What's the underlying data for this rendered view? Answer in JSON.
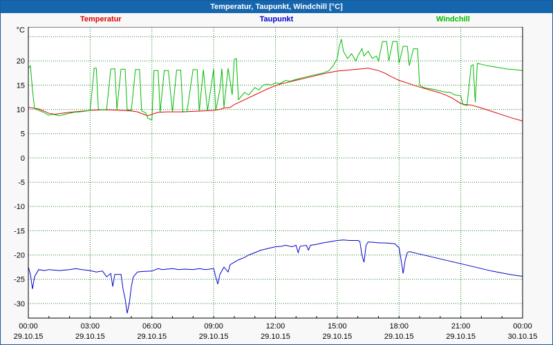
{
  "window": {
    "title": "Temperatur, Taupunkt, Windchill [°C]",
    "titlebar_color": "#1666ae"
  },
  "legend": [
    {
      "label": "Temperatur",
      "color": "#dd0000"
    },
    {
      "label": "Taupunkt",
      "color": "#0000cc"
    },
    {
      "label": "Windchill",
      "color": "#00bb00"
    }
  ],
  "chart_data": {
    "type": "line",
    "title": "Temperatur, Taupunkt, Windchill [°C]",
    "ylabel": "°C",
    "ylim": [
      -33,
      27
    ],
    "xlim": [
      0,
      24
    ],
    "grid": true,
    "grid_color": "#1d7a1d",
    "plot_bg": "#ffffff",
    "y_gridlines": [
      25,
      20,
      15,
      10,
      5,
      0,
      -5,
      -10,
      -15,
      -20,
      -25,
      -30
    ],
    "y_tick_labels": [
      20,
      15,
      10,
      5,
      0,
      -5,
      -10,
      -15,
      -20,
      -25,
      -30
    ],
    "x_ticks": [
      {
        "hour": 0,
        "time": "00:00",
        "date": "29.10.15"
      },
      {
        "hour": 3,
        "time": "03:00",
        "date": "29.10.15"
      },
      {
        "hour": 6,
        "time": "06:00",
        "date": "29.10.15"
      },
      {
        "hour": 9,
        "time": "09:00",
        "date": "29.10.15"
      },
      {
        "hour": 12,
        "time": "12:00",
        "date": "29.10.15"
      },
      {
        "hour": 15,
        "time": "15:00",
        "date": "29.10.15"
      },
      {
        "hour": 18,
        "time": "18:00",
        "date": "29.10.15"
      },
      {
        "hour": 21,
        "time": "21:00",
        "date": "29.10.15"
      },
      {
        "hour": 24,
        "time": "00:00",
        "date": "30.10.15"
      }
    ],
    "series": [
      {
        "name": "Temperatur",
        "color": "#dd0000",
        "points": [
          [
            0,
            10.4
          ],
          [
            0.2,
            10.3
          ],
          [
            0.5,
            10.1
          ],
          [
            0.8,
            9.6
          ],
          [
            1.0,
            9.2
          ],
          [
            1.3,
            9.0
          ],
          [
            1.6,
            9.2
          ],
          [
            2.0,
            9.4
          ],
          [
            2.5,
            9.6
          ],
          [
            3.0,
            9.8
          ],
          [
            3.5,
            9.9
          ],
          [
            4.0,
            9.9
          ],
          [
            4.5,
            9.8
          ],
          [
            5.0,
            9.7
          ],
          [
            5.3,
            9.5
          ],
          [
            5.6,
            9.0
          ],
          [
            5.8,
            8.7
          ],
          [
            6.0,
            9.0
          ],
          [
            6.3,
            9.4
          ],
          [
            6.7,
            9.5
          ],
          [
            7.0,
            9.5
          ],
          [
            7.5,
            9.5
          ],
          [
            8.0,
            9.6
          ],
          [
            8.5,
            9.7
          ],
          [
            9.0,
            9.8
          ],
          [
            9.3,
            10.0
          ],
          [
            9.5,
            10.3
          ],
          [
            9.8,
            10.4
          ],
          [
            10.0,
            11.0
          ],
          [
            10.3,
            11.6
          ],
          [
            10.6,
            12.2
          ],
          [
            11.0,
            13.0
          ],
          [
            11.3,
            13.6
          ],
          [
            11.6,
            14.2
          ],
          [
            12.0,
            14.9
          ],
          [
            12.3,
            15.3
          ],
          [
            12.6,
            15.6
          ],
          [
            13.0,
            16.0
          ],
          [
            13.5,
            16.5
          ],
          [
            14.0,
            17.0
          ],
          [
            14.5,
            17.5
          ],
          [
            15.0,
            17.9
          ],
          [
            15.5,
            18.1
          ],
          [
            16.0,
            18.3
          ],
          [
            16.5,
            18.5
          ],
          [
            17.0,
            18.0
          ],
          [
            17.3,
            17.5
          ],
          [
            17.6,
            16.8
          ],
          [
            18.0,
            16.0
          ],
          [
            18.5,
            15.3
          ],
          [
            19.0,
            14.6
          ],
          [
            19.5,
            14.0
          ],
          [
            20.0,
            13.4
          ],
          [
            20.3,
            12.9
          ],
          [
            20.6,
            12.3
          ],
          [
            21.0,
            11.2
          ],
          [
            21.2,
            11.0
          ],
          [
            21.5,
            10.9
          ],
          [
            22.0,
            10.3
          ],
          [
            22.5,
            9.6
          ],
          [
            23.0,
            8.9
          ],
          [
            23.5,
            8.2
          ],
          [
            24.0,
            7.6
          ]
        ]
      },
      {
        "name": "Taupunkt",
        "color": "#0000cc",
        "points": [
          [
            0,
            -22.5
          ],
          [
            0.1,
            -24.0
          ],
          [
            0.2,
            -27.0
          ],
          [
            0.3,
            -24.5
          ],
          [
            0.5,
            -23.0
          ],
          [
            0.8,
            -23.2
          ],
          [
            1.0,
            -23.0
          ],
          [
            1.5,
            -23.2
          ],
          [
            2.0,
            -23.0
          ],
          [
            2.3,
            -22.8
          ],
          [
            2.6,
            -23.0
          ],
          [
            3.0,
            -23.2
          ],
          [
            3.3,
            -23.5
          ],
          [
            3.6,
            -23.3
          ],
          [
            3.8,
            -24.5
          ],
          [
            4.0,
            -23.8
          ],
          [
            4.1,
            -26.5
          ],
          [
            4.2,
            -24.0
          ],
          [
            4.5,
            -24.0
          ],
          [
            4.6,
            -27.0
          ],
          [
            4.7,
            -29.0
          ],
          [
            4.8,
            -32.0
          ],
          [
            4.9,
            -30.0
          ],
          [
            5.0,
            -26.5
          ],
          [
            5.1,
            -24.5
          ],
          [
            5.3,
            -23.5
          ],
          [
            5.5,
            -23.4
          ],
          [
            6.0,
            -23.3
          ],
          [
            6.3,
            -22.8
          ],
          [
            6.5,
            -23.0
          ],
          [
            7.0,
            -22.8
          ],
          [
            7.3,
            -23.0
          ],
          [
            7.6,
            -22.9
          ],
          [
            8.0,
            -23.0
          ],
          [
            8.3,
            -22.8
          ],
          [
            8.6,
            -23.0
          ],
          [
            9.0,
            -22.8
          ],
          [
            9.1,
            -24.5
          ],
          [
            9.2,
            -26.0
          ],
          [
            9.3,
            -24.0
          ],
          [
            9.5,
            -22.5
          ],
          [
            9.7,
            -23.5
          ],
          [
            9.8,
            -22.0
          ],
          [
            10.0,
            -21.5
          ],
          [
            10.2,
            -21.0
          ],
          [
            10.5,
            -20.5
          ],
          [
            10.7,
            -20.0
          ],
          [
            11.0,
            -19.5
          ],
          [
            11.3,
            -19.0
          ],
          [
            11.6,
            -18.7
          ],
          [
            12.0,
            -18.3
          ],
          [
            12.3,
            -18.2
          ],
          [
            12.5,
            -18.0
          ],
          [
            12.8,
            -18.3
          ],
          [
            13.0,
            -18.0
          ],
          [
            13.1,
            -19.5
          ],
          [
            13.2,
            -18.2
          ],
          [
            13.5,
            -18.0
          ],
          [
            13.6,
            -19.0
          ],
          [
            13.7,
            -18.0
          ],
          [
            14.0,
            -17.8
          ],
          [
            14.3,
            -17.5
          ],
          [
            14.6,
            -17.3
          ],
          [
            15.0,
            -17.0
          ],
          [
            15.3,
            -16.9
          ],
          [
            15.6,
            -17.0
          ],
          [
            16.0,
            -17.0
          ],
          [
            16.1,
            -17.2
          ],
          [
            16.2,
            -20.0
          ],
          [
            16.3,
            -21.5
          ],
          [
            16.4,
            -18.0
          ],
          [
            16.5,
            -17.3
          ],
          [
            16.8,
            -17.4
          ],
          [
            17.0,
            -17.5
          ],
          [
            17.3,
            -17.5
          ],
          [
            17.6,
            -17.6
          ],
          [
            17.8,
            -17.7
          ],
          [
            18.0,
            -18.5
          ],
          [
            18.1,
            -21.0
          ],
          [
            18.2,
            -23.8
          ],
          [
            18.3,
            -21.0
          ],
          [
            18.4,
            -19.5
          ],
          [
            18.5,
            -19.3
          ],
          [
            18.8,
            -19.6
          ],
          [
            19.0,
            -19.8
          ],
          [
            19.5,
            -20.3
          ],
          [
            20.0,
            -20.8
          ],
          [
            20.5,
            -21.3
          ],
          [
            21.0,
            -21.8
          ],
          [
            21.5,
            -22.3
          ],
          [
            22.0,
            -22.8
          ],
          [
            22.5,
            -23.3
          ],
          [
            23.0,
            -23.7
          ],
          [
            23.5,
            -24.1
          ],
          [
            24.0,
            -24.4
          ]
        ]
      },
      {
        "name": "Windchill",
        "color": "#00bb00",
        "points": [
          [
            0,
            18.5
          ],
          [
            0.1,
            19.0
          ],
          [
            0.2,
            14.0
          ],
          [
            0.3,
            10.2
          ],
          [
            0.5,
            9.8
          ],
          [
            0.7,
            9.5
          ],
          [
            0.9,
            9.0
          ],
          [
            1.0,
            8.8
          ],
          [
            1.2,
            9.0
          ],
          [
            1.5,
            8.7
          ],
          [
            1.8,
            9.0
          ],
          [
            2.0,
            9.2
          ],
          [
            2.2,
            9.4
          ],
          [
            2.5,
            9.5
          ],
          [
            2.7,
            9.6
          ],
          [
            3.0,
            9.8
          ],
          [
            3.2,
            18.5
          ],
          [
            3.3,
            18.5
          ],
          [
            3.4,
            10.0
          ],
          [
            3.6,
            9.9
          ],
          [
            3.8,
            10.0
          ],
          [
            4.0,
            18.3
          ],
          [
            4.2,
            18.4
          ],
          [
            4.3,
            10.0
          ],
          [
            4.5,
            18.3
          ],
          [
            4.7,
            18.3
          ],
          [
            4.8,
            9.9
          ],
          [
            5.0,
            9.8
          ],
          [
            5.2,
            18.2
          ],
          [
            5.4,
            18.2
          ],
          [
            5.5,
            9.7
          ],
          [
            5.7,
            9.3
          ],
          [
            5.8,
            8.2
          ],
          [
            6.0,
            7.8
          ],
          [
            6.1,
            18.0
          ],
          [
            6.3,
            18.0
          ],
          [
            6.4,
            9.4
          ],
          [
            6.6,
            18.0
          ],
          [
            6.8,
            18.0
          ],
          [
            7.0,
            9.5
          ],
          [
            7.2,
            18.1
          ],
          [
            7.4,
            18.1
          ],
          [
            7.5,
            9.6
          ],
          [
            7.7,
            9.5
          ],
          [
            8.0,
            18.2
          ],
          [
            8.2,
            18.2
          ],
          [
            8.3,
            9.7
          ],
          [
            8.5,
            18.2
          ],
          [
            8.7,
            9.7
          ],
          [
            9.0,
            18.3
          ],
          [
            9.1,
            9.8
          ],
          [
            9.3,
            14.0
          ],
          [
            9.4,
            18.4
          ],
          [
            9.5,
            10.4
          ],
          [
            9.7,
            18.5
          ],
          [
            9.9,
            13.0
          ],
          [
            10.0,
            20.3
          ],
          [
            10.1,
            20.5
          ],
          [
            10.2,
            12.0
          ],
          [
            10.3,
            12.5
          ],
          [
            10.5,
            13.5
          ],
          [
            10.7,
            13.0
          ],
          [
            10.9,
            14.0
          ],
          [
            11.0,
            14.5
          ],
          [
            11.2,
            14.0
          ],
          [
            11.4,
            15.0
          ],
          [
            11.6,
            15.2
          ],
          [
            11.8,
            15.0
          ],
          [
            12.0,
            15.5
          ],
          [
            12.2,
            15.3
          ],
          [
            12.5,
            16.0
          ],
          [
            12.7,
            15.8
          ],
          [
            13.0,
            16.2
          ],
          [
            13.3,
            16.5
          ],
          [
            13.6,
            16.8
          ],
          [
            14.0,
            17.2
          ],
          [
            14.3,
            17.5
          ],
          [
            14.6,
            18.0
          ],
          [
            14.8,
            19.0
          ],
          [
            15.0,
            20.5
          ],
          [
            15.1,
            23.0
          ],
          [
            15.2,
            24.5
          ],
          [
            15.3,
            22.0
          ],
          [
            15.5,
            20.5
          ],
          [
            15.7,
            21.5
          ],
          [
            15.9,
            20.0
          ],
          [
            16.0,
            21.0
          ],
          [
            16.2,
            22.5
          ],
          [
            16.3,
            21.0
          ],
          [
            16.5,
            22.0
          ],
          [
            16.7,
            20.5
          ],
          [
            16.9,
            21.0
          ],
          [
            17.0,
            20.0
          ],
          [
            17.2,
            24.0
          ],
          [
            17.4,
            24.0
          ],
          [
            17.5,
            20.0
          ],
          [
            17.7,
            24.0
          ],
          [
            17.9,
            24.0
          ],
          [
            18.0,
            19.5
          ],
          [
            18.2,
            23.0
          ],
          [
            18.4,
            23.0
          ],
          [
            18.5,
            19.0
          ],
          [
            18.7,
            22.5
          ],
          [
            18.9,
            22.5
          ],
          [
            19.0,
            15.0
          ],
          [
            19.2,
            14.5
          ],
          [
            19.4,
            14.3
          ],
          [
            19.6,
            14.2
          ],
          [
            19.8,
            14.0
          ],
          [
            20.0,
            13.8
          ],
          [
            20.2,
            13.6
          ],
          [
            20.5,
            13.5
          ],
          [
            20.7,
            13.0
          ],
          [
            21.0,
            12.8
          ],
          [
            21.1,
            11.0
          ],
          [
            21.3,
            10.8
          ],
          [
            21.5,
            19.0
          ],
          [
            21.6,
            19.2
          ],
          [
            21.7,
            11.5
          ],
          [
            21.8,
            19.5
          ],
          [
            22.0,
            19.3
          ],
          [
            22.3,
            19.0
          ],
          [
            22.6,
            18.8
          ],
          [
            23.0,
            18.5
          ],
          [
            23.3,
            18.3
          ],
          [
            23.6,
            18.2
          ],
          [
            24.0,
            18.0
          ]
        ]
      }
    ]
  }
}
